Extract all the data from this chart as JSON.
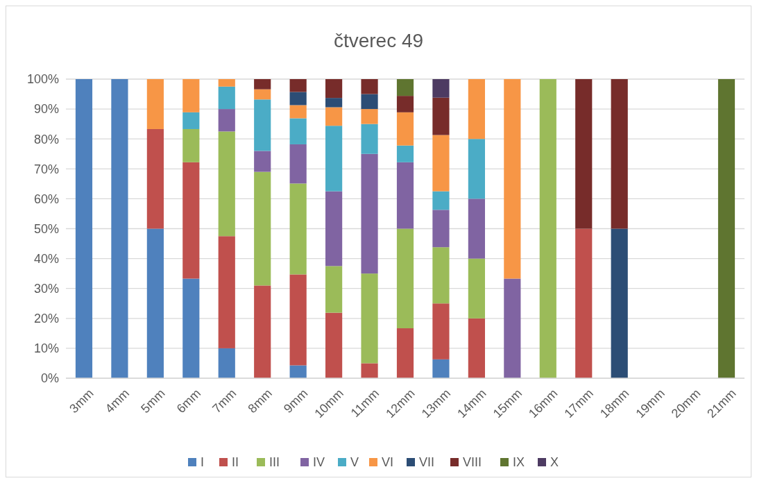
{
  "chart_data": {
    "type": "bar",
    "title": "čtverec 49",
    "stacked": true,
    "categories": [
      "3mm",
      "4mm",
      "5mm",
      "6mm",
      "7mm",
      "8mm",
      "9mm",
      "10mm",
      "11mm",
      "12mm",
      "13mm",
      "14mm",
      "15mm",
      "16mm",
      "17mm",
      "18mm",
      "19mm",
      "20mm",
      "21mm"
    ],
    "series": [
      {
        "name": "I",
        "color": "#4f81bd",
        "values": [
          100,
          100,
          50,
          33.3,
          10,
          null,
          4.3,
          null,
          null,
          null,
          6.3,
          null,
          null,
          null,
          null,
          null,
          null,
          null,
          null
        ]
      },
      {
        "name": "II",
        "color": "#c0504d",
        "values": [
          null,
          null,
          33.3,
          38.9,
          37.5,
          31,
          30.4,
          21.9,
          5,
          16.7,
          18.7,
          20,
          null,
          null,
          50,
          null,
          null,
          null,
          null
        ]
      },
      {
        "name": "III",
        "color": "#9bbb59",
        "values": [
          null,
          null,
          null,
          11.1,
          35,
          38,
          30.4,
          15.6,
          30,
          33.3,
          18.8,
          20,
          null,
          100,
          null,
          null,
          null,
          null,
          null
        ]
      },
      {
        "name": "IV",
        "color": "#8064a2",
        "values": [
          null,
          null,
          null,
          null,
          7.5,
          7,
          13.1,
          25,
          40,
          22.2,
          12.5,
          20,
          33.3,
          null,
          null,
          null,
          null,
          null,
          null
        ]
      },
      {
        "name": "V",
        "color": "#4bacc6",
        "values": [
          null,
          null,
          null,
          5.6,
          7.5,
          17.2,
          8.7,
          21.9,
          10,
          5.6,
          6.2,
          20,
          null,
          null,
          null,
          null,
          null,
          null,
          null
        ]
      },
      {
        "name": "VI",
        "color": "#f79646",
        "values": [
          null,
          null,
          16.7,
          11.1,
          2.5,
          3.4,
          4.4,
          6.2,
          5,
          11.1,
          18.8,
          20,
          66.7,
          null,
          null,
          null,
          null,
          null,
          null
        ]
      },
      {
        "name": "VII",
        "color": "#2c4d75",
        "values": [
          null,
          null,
          null,
          null,
          null,
          null,
          4.4,
          3.1,
          5,
          null,
          null,
          null,
          null,
          null,
          null,
          50,
          null,
          null,
          null
        ]
      },
      {
        "name": "VIII",
        "color": "#772c2a",
        "values": [
          null,
          null,
          null,
          null,
          null,
          3.4,
          4.3,
          6.3,
          5,
          5.5,
          12.5,
          null,
          null,
          null,
          50,
          50,
          null,
          null,
          null
        ]
      },
      {
        "name": "IX",
        "color": "#5f7530",
        "values": [
          null,
          null,
          null,
          null,
          null,
          null,
          null,
          null,
          null,
          5.6,
          null,
          null,
          null,
          null,
          null,
          null,
          null,
          null,
          100
        ]
      },
      {
        "name": "X",
        "color": "#4d3b62",
        "values": [
          null,
          null,
          null,
          null,
          null,
          null,
          null,
          null,
          null,
          null,
          6.2,
          null,
          null,
          null,
          null,
          null,
          null,
          null,
          null
        ]
      }
    ],
    "ylim": [
      0,
      100
    ],
    "yticks": [
      {
        "value": 0,
        "label": "0%"
      },
      {
        "value": 10,
        "label": "10%"
      },
      {
        "value": 20,
        "label": "20%"
      },
      {
        "value": 30,
        "label": "30%"
      },
      {
        "value": 40,
        "label": "40%"
      },
      {
        "value": 50,
        "label": "50%"
      },
      {
        "value": 60,
        "label": "60%"
      },
      {
        "value": 70,
        "label": "70%"
      },
      {
        "value": 80,
        "label": "80%"
      },
      {
        "value": 90,
        "label": "90%"
      },
      {
        "value": 100,
        "label": "100%"
      }
    ],
    "grid": "y",
    "legend": "bottom"
  }
}
